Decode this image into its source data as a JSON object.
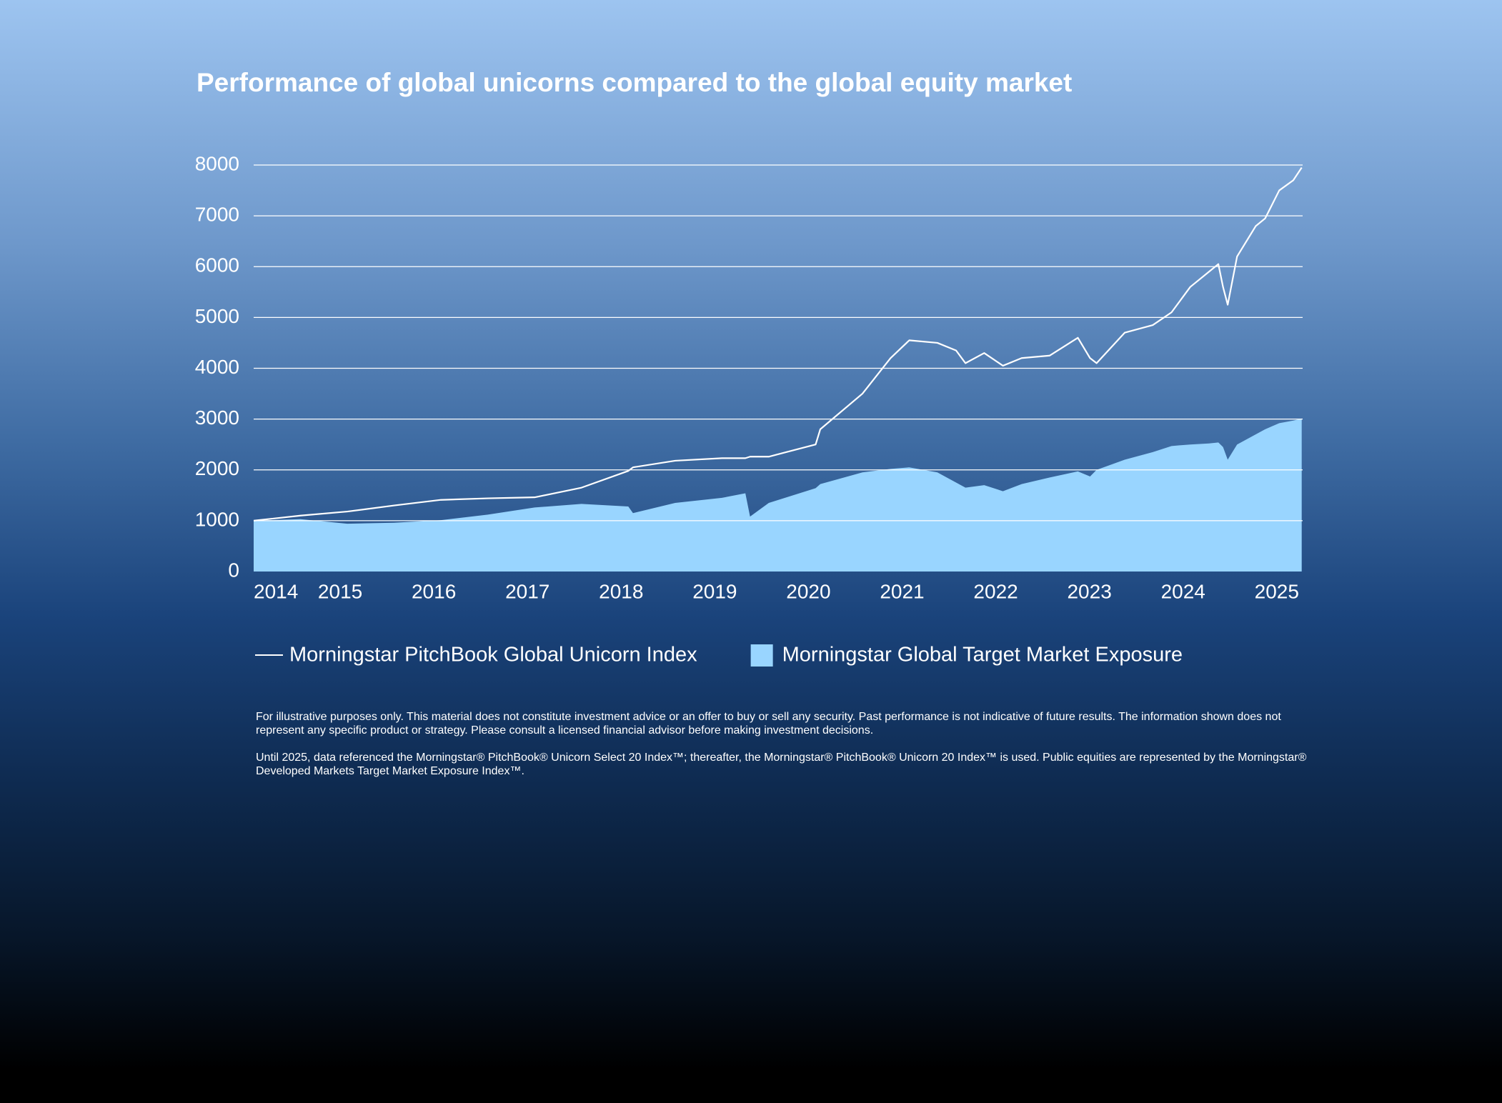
{
  "chart_data": {
    "type": "line",
    "title": "Performance of  global unicorns compared to the global equity market",
    "x": [
      2014.0,
      2014.5,
      2015.0,
      2015.5,
      2016.0,
      2016.5,
      2017.0,
      2017.5,
      2018.0,
      2018.05,
      2018.5,
      2019.0,
      2019.25,
      2019.3,
      2019.5,
      2020.0,
      2020.05,
      2020.5,
      2020.8,
      2021.0,
      2021.3,
      2021.5,
      2021.6,
      2021.8,
      2022.0,
      2022.2,
      2022.5,
      2022.8,
      2022.93,
      2023.0,
      2023.3,
      2023.6,
      2023.8,
      2024.0,
      2024.2,
      2024.3,
      2024.35,
      2024.4,
      2024.5,
      2024.7,
      2024.8,
      2024.95,
      2025.1,
      2025.19
    ],
    "series": [
      {
        "name": "Morningstar PitchBook Global Unicorn Index",
        "type": "line",
        "color": "#ffffff",
        "values": [
          1000,
          1100,
          1180,
          1300,
          1410,
          1440,
          1460,
          1650,
          1980,
          2050,
          2180,
          2230,
          2230,
          2260,
          2260,
          2500,
          2800,
          3500,
          4200,
          4550,
          4500,
          4350,
          4100,
          4300,
          4050,
          4200,
          4250,
          4600,
          4200,
          4100,
          4700,
          4850,
          5100,
          5600,
          5900,
          6050,
          5600,
          5250,
          6200,
          6800,
          6950,
          7500,
          7700,
          7950
        ]
      },
      {
        "name": "Morningstar Global Target Market Exposure",
        "type": "area",
        "color": "#99d5ff",
        "values": [
          1000,
          1030,
          940,
          960,
          1010,
          1120,
          1260,
          1330,
          1280,
          1150,
          1350,
          1450,
          1540,
          1080,
          1350,
          1640,
          1720,
          1950,
          2020,
          2050,
          1950,
          1750,
          1650,
          1700,
          1580,
          1720,
          1850,
          1970,
          1870,
          2000,
          2200,
          2350,
          2470,
          2500,
          2520,
          2540,
          2450,
          2200,
          2500,
          2700,
          2800,
          2920,
          2970,
          3010
        ]
      }
    ],
    "xlim": [
      2014,
      2025.2
    ],
    "xticks": [
      2014,
      2015,
      2016,
      2017,
      2018,
      2019,
      2020,
      2021,
      2022,
      2023,
      2024,
      2025
    ],
    "ylim": [
      0,
      8000
    ],
    "yticks": [
      0,
      1000,
      2000,
      3000,
      4000,
      5000,
      6000,
      7000,
      8000
    ],
    "grid": true,
    "notes": [
      "For illustrative purposes only. This material does not constitute investment advice or an offer to buy or sell any security. Past performance is not indicative of future results. The information shown does not represent any specific product or strategy. Please consult a licensed financial advisor before making investment decisions.",
      "Until 2025, data referenced the Morningstar® PitchBook® Unicorn Select 20 Index™; thereafter, the Morningstar® PitchBook® Unicorn 20 Index™ is used. Public equities are represented by the Morningstar® Developed Markets Target Market Exposure Index™."
    ]
  }
}
